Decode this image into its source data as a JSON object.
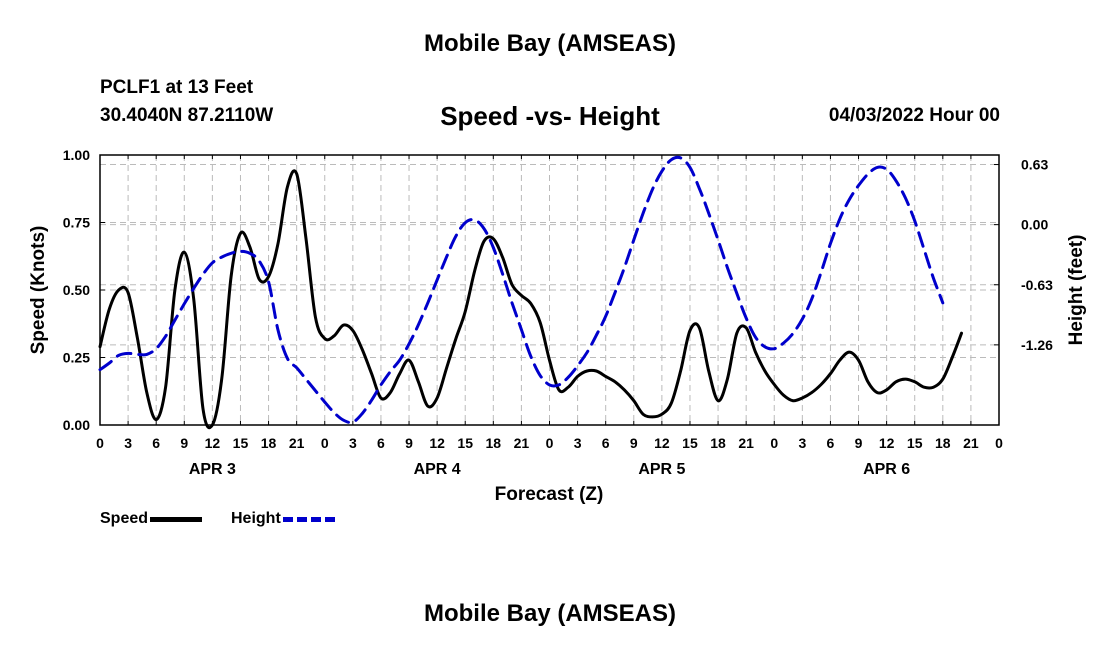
{
  "header": {
    "main_title": "Mobile Bay (AMSEAS)",
    "station": "PCLF1 at 13 Feet",
    "coords": "30.4040N  87.2110W",
    "chart_title": "Speed -vs- Height",
    "run_time": "04/03/2022 Hour 00"
  },
  "footer": {
    "title": "Mobile Bay (AMSEAS)"
  },
  "legend": {
    "speed": "Speed",
    "height": "Height"
  },
  "colors": {
    "speed": "#000000",
    "height": "#0000cc",
    "grid": "#bbbbbb"
  },
  "chart_data": {
    "type": "line",
    "xlabel": "Forecast (Z)",
    "ylabel_left": "Speed (Knots)",
    "ylabel_right": "Height (feet)",
    "xlim": [
      0,
      96
    ],
    "ylim_left": [
      0,
      1
    ],
    "ylim_right": [
      -2.1,
      0.73
    ],
    "grid": true,
    "legend_position": "bottom-left",
    "x_tick_labels": [
      "0",
      "3",
      "6",
      "9",
      "12",
      "15",
      "18",
      "21",
      "0",
      "3",
      "6",
      "9",
      "12",
      "15",
      "18",
      "21",
      "0",
      "3",
      "6",
      "9",
      "12",
      "15",
      "18",
      "21",
      "0",
      "3",
      "6",
      "9",
      "12",
      "15",
      "18",
      "21",
      "0"
    ],
    "day_labels": [
      {
        "label": "APR 3",
        "x": 12
      },
      {
        "label": "APR 4",
        "x": 36
      },
      {
        "label": "APR 5",
        "x": 60
      },
      {
        "label": "APR 6",
        "x": 84
      }
    ],
    "y_left_ticks": [
      "0.00",
      "0.25",
      "0.50",
      "0.75",
      "1.00"
    ],
    "y_left_tick_values": [
      0,
      0.25,
      0.5,
      0.75,
      1.0
    ],
    "y_right_ticks": [
      "0.63",
      "0.00",
      "-0.63",
      "-1.26"
    ],
    "y_right_tick_values": [
      0.63,
      0.0,
      -0.63,
      -1.26
    ],
    "series": [
      {
        "name": "Speed",
        "axis": "left",
        "points": [
          [
            0,
            0.29
          ],
          [
            1,
            0.43
          ],
          [
            2,
            0.5
          ],
          [
            3,
            0.49
          ],
          [
            4,
            0.32
          ],
          [
            5,
            0.12
          ],
          [
            6,
            0.02
          ],
          [
            7,
            0.14
          ],
          [
            8,
            0.5
          ],
          [
            9,
            0.64
          ],
          [
            10,
            0.47
          ],
          [
            11,
            0.06
          ],
          [
            12,
            0.0
          ],
          [
            13,
            0.17
          ],
          [
            14,
            0.55
          ],
          [
            15,
            0.71
          ],
          [
            16,
            0.66
          ],
          [
            17,
            0.54
          ],
          [
            18,
            0.55
          ],
          [
            19,
            0.67
          ],
          [
            20,
            0.88
          ],
          [
            21,
            0.93
          ],
          [
            22,
            0.69
          ],
          [
            23,
            0.4
          ],
          [
            24,
            0.32
          ],
          [
            25,
            0.33
          ],
          [
            26,
            0.37
          ],
          [
            27,
            0.35
          ],
          [
            28,
            0.28
          ],
          [
            29,
            0.19
          ],
          [
            30,
            0.1
          ],
          [
            31,
            0.12
          ],
          [
            32,
            0.19
          ],
          [
            33,
            0.24
          ],
          [
            34,
            0.16
          ],
          [
            35,
            0.07
          ],
          [
            36,
            0.1
          ],
          [
            37,
            0.21
          ],
          [
            38,
            0.32
          ],
          [
            39,
            0.42
          ],
          [
            40,
            0.57
          ],
          [
            41,
            0.68
          ],
          [
            42,
            0.69
          ],
          [
            43,
            0.62
          ],
          [
            44,
            0.52
          ],
          [
            45,
            0.48
          ],
          [
            46,
            0.45
          ],
          [
            47,
            0.38
          ],
          [
            48,
            0.24
          ],
          [
            49,
            0.13
          ],
          [
            50,
            0.14
          ],
          [
            51,
            0.18
          ],
          [
            52,
            0.2
          ],
          [
            53,
            0.2
          ],
          [
            54,
            0.18
          ],
          [
            55,
            0.16
          ],
          [
            56,
            0.13
          ],
          [
            57,
            0.09
          ],
          [
            58,
            0.04
          ],
          [
            59,
            0.03
          ],
          [
            60,
            0.04
          ],
          [
            61,
            0.08
          ],
          [
            62,
            0.2
          ],
          [
            63,
            0.35
          ],
          [
            64,
            0.36
          ],
          [
            65,
            0.2
          ],
          [
            66,
            0.09
          ],
          [
            67,
            0.17
          ],
          [
            68,
            0.34
          ],
          [
            69,
            0.36
          ],
          [
            70,
            0.27
          ],
          [
            71,
            0.2
          ],
          [
            72,
            0.15
          ],
          [
            73,
            0.11
          ],
          [
            74,
            0.09
          ],
          [
            75,
            0.1
          ],
          [
            76,
            0.12
          ],
          [
            77,
            0.15
          ],
          [
            78,
            0.19
          ],
          [
            79,
            0.24
          ],
          [
            80,
            0.27
          ],
          [
            81,
            0.24
          ],
          [
            82,
            0.16
          ],
          [
            83,
            0.12
          ],
          [
            84,
            0.13
          ],
          [
            85,
            0.16
          ],
          [
            86,
            0.17
          ],
          [
            87,
            0.16
          ],
          [
            88,
            0.14
          ],
          [
            89,
            0.14
          ],
          [
            90,
            0.17
          ],
          [
            91,
            0.25
          ],
          [
            92,
            0.34
          ]
        ]
      },
      {
        "name": "Height",
        "axis": "right",
        "points": [
          [
            0,
            -1.52
          ],
          [
            1,
            -1.45
          ],
          [
            2,
            -1.37
          ],
          [
            3,
            -1.35
          ],
          [
            4,
            -1.36
          ],
          [
            5,
            -1.36
          ],
          [
            6,
            -1.3
          ],
          [
            7,
            -1.17
          ],
          [
            8,
            -1.0
          ],
          [
            9,
            -0.83
          ],
          [
            10,
            -0.67
          ],
          [
            11,
            -0.52
          ],
          [
            12,
            -0.4
          ],
          [
            13,
            -0.34
          ],
          [
            14,
            -0.3
          ],
          [
            15,
            -0.28
          ],
          [
            16,
            -0.3
          ],
          [
            17,
            -0.38
          ],
          [
            18,
            -0.6
          ],
          [
            19,
            -1.1
          ],
          [
            20,
            -1.4
          ],
          [
            21,
            -1.5
          ],
          [
            22,
            -1.62
          ],
          [
            23,
            -1.74
          ],
          [
            24,
            -1.86
          ],
          [
            25,
            -1.97
          ],
          [
            26,
            -2.05
          ],
          [
            27,
            -2.07
          ],
          [
            28,
            -1.98
          ],
          [
            29,
            -1.84
          ],
          [
            30,
            -1.68
          ],
          [
            31,
            -1.54
          ],
          [
            32,
            -1.42
          ],
          [
            33,
            -1.25
          ],
          [
            34,
            -1.05
          ],
          [
            35,
            -0.82
          ],
          [
            36,
            -0.58
          ],
          [
            37,
            -0.34
          ],
          [
            38,
            -0.12
          ],
          [
            39,
            0.02
          ],
          [
            40,
            0.05
          ],
          [
            41,
            -0.04
          ],
          [
            42,
            -0.24
          ],
          [
            43,
            -0.52
          ],
          [
            44,
            -0.82
          ],
          [
            45,
            -1.1
          ],
          [
            46,
            -1.38
          ],
          [
            47,
            -1.58
          ],
          [
            48,
            -1.68
          ],
          [
            49,
            -1.68
          ],
          [
            50,
            -1.6
          ],
          [
            51,
            -1.48
          ],
          [
            52,
            -1.34
          ],
          [
            53,
            -1.16
          ],
          [
            54,
            -0.96
          ],
          [
            55,
            -0.71
          ],
          [
            56,
            -0.45
          ],
          [
            57,
            -0.16
          ],
          [
            58,
            0.12
          ],
          [
            59,
            0.37
          ],
          [
            60,
            0.56
          ],
          [
            61,
            0.68
          ],
          [
            62,
            0.7
          ],
          [
            63,
            0.6
          ],
          [
            64,
            0.38
          ],
          [
            65,
            0.12
          ],
          [
            66,
            -0.16
          ],
          [
            67,
            -0.45
          ],
          [
            68,
            -0.72
          ],
          [
            69,
            -0.98
          ],
          [
            70,
            -1.18
          ],
          [
            71,
            -1.28
          ],
          [
            72,
            -1.3
          ],
          [
            73,
            -1.24
          ],
          [
            74,
            -1.14
          ],
          [
            75,
            -0.99
          ],
          [
            76,
            -0.78
          ],
          [
            77,
            -0.5
          ],
          [
            78,
            -0.2
          ],
          [
            79,
            0.06
          ],
          [
            80,
            0.26
          ],
          [
            81,
            0.41
          ],
          [
            82,
            0.53
          ],
          [
            83,
            0.6
          ],
          [
            84,
            0.58
          ],
          [
            85,
            0.46
          ],
          [
            86,
            0.28
          ],
          [
            87,
            0.04
          ],
          [
            88,
            -0.26
          ],
          [
            89,
            -0.56
          ],
          [
            90,
            -0.82
          ]
        ]
      }
    ]
  }
}
